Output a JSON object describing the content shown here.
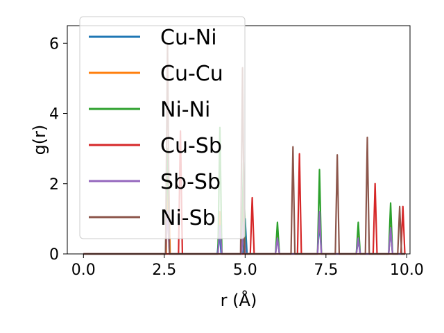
{
  "chart_data": {
    "type": "line",
    "title": "",
    "xlabel": "r (Å)",
    "ylabel": "g(r)",
    "xlim": [
      -0.5,
      10.1
    ],
    "ylim": [
      0,
      6.5
    ],
    "xticks": [
      0.0,
      2.5,
      5.0,
      7.5,
      10.0
    ],
    "xtick_labels": [
      "0.0",
      "2.5",
      "5.0",
      "7.5",
      "10.0"
    ],
    "yticks": [
      0,
      2,
      4,
      6
    ],
    "ytick_labels": [
      "0",
      "2",
      "4",
      "6"
    ],
    "grid": false,
    "legend_position": "upper-left",
    "peak_half_width": 0.06,
    "series": [
      {
        "name": "Cu-Ni",
        "color": "#1f77b4",
        "peaks": [
          [
            2.6,
            1.5
          ],
          [
            4.2,
            0.6
          ],
          [
            5.0,
            1.0
          ],
          [
            6.0,
            0.5
          ],
          [
            7.3,
            0.9
          ],
          [
            8.5,
            0.4
          ],
          [
            9.5,
            0.7
          ]
        ]
      },
      {
        "name": "Cu-Cu",
        "color": "#ff7f0e",
        "peaks": [
          [
            2.62,
            3.0
          ],
          [
            4.22,
            1.2
          ],
          [
            4.95,
            1.6
          ],
          [
            6.0,
            0.6
          ],
          [
            7.3,
            1.2
          ],
          [
            8.5,
            0.5
          ],
          [
            9.5,
            0.8
          ]
        ]
      },
      {
        "name": "Ni-Ni",
        "color": "#2ca02c",
        "peaks": [
          [
            2.6,
            3.0
          ],
          [
            4.22,
            3.6
          ],
          [
            4.95,
            2.6
          ],
          [
            6.0,
            0.9
          ],
          [
            7.3,
            2.4
          ],
          [
            8.5,
            0.9
          ],
          [
            9.5,
            1.45
          ]
        ]
      },
      {
        "name": "Cu-Sb",
        "color": "#d62728",
        "peaks": [
          [
            3.0,
            3.5
          ],
          [
            5.22,
            1.6
          ],
          [
            6.68,
            2.85
          ],
          [
            9.02,
            2.0
          ],
          [
            9.88,
            1.35
          ]
        ]
      },
      {
        "name": "Sb-Sb",
        "color": "#9467bd",
        "peaks": [
          [
            2.6,
            1.2
          ],
          [
            4.22,
            0.8
          ],
          [
            4.95,
            0.9
          ],
          [
            6.0,
            0.45
          ],
          [
            7.3,
            1.2
          ],
          [
            8.5,
            0.45
          ],
          [
            9.5,
            0.75
          ]
        ]
      },
      {
        "name": "Ni-Sb",
        "color": "#8c564b",
        "peaks": [
          [
            2.6,
            6.0
          ],
          [
            4.92,
            5.3
          ],
          [
            6.48,
            3.05
          ],
          [
            7.85,
            2.82
          ],
          [
            8.78,
            3.32
          ],
          [
            9.78,
            1.35
          ]
        ]
      }
    ]
  }
}
